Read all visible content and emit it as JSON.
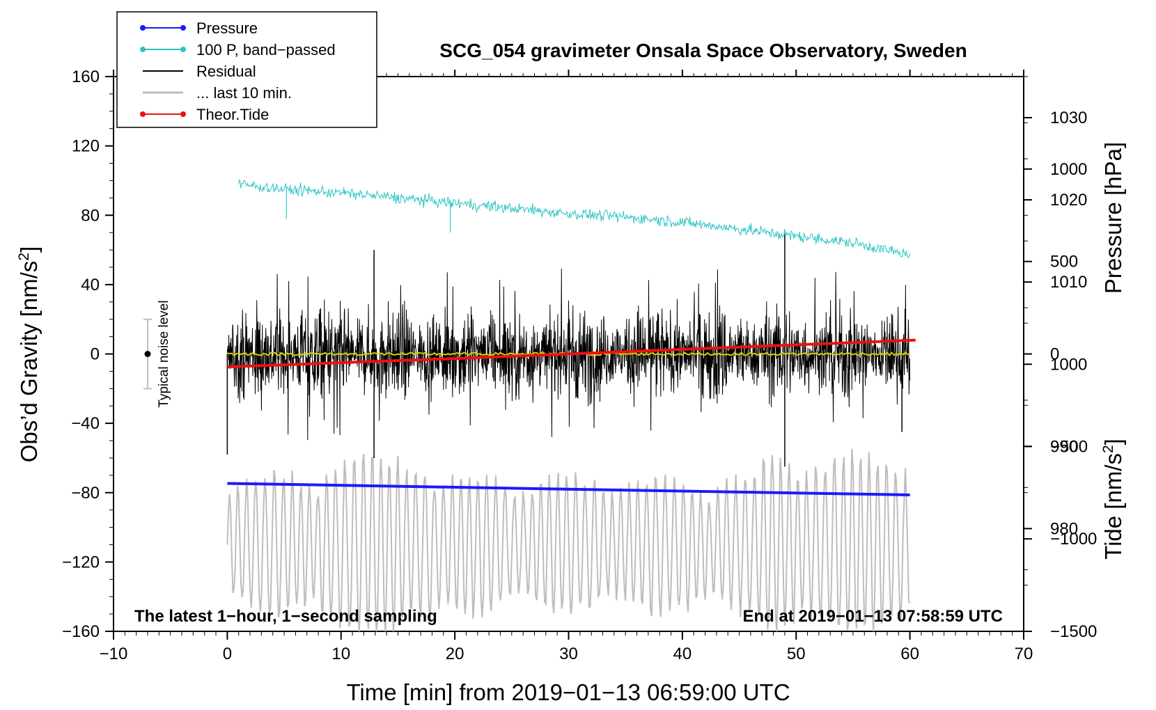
{
  "chart_data": {
    "type": "line",
    "title": "SCG_054 gravimeter Onsala Space Observatory, Sweden",
    "xlabel": "Time [min] from 2019−01−13 06:59:00 UTC",
    "ylabel": "Obs’d Gravity [nm/s²]",
    "ylabel_main": "Obs’d Gravity [nm/s",
    "ylabel_sup": "2",
    "ylabel_end": "]",
    "y2label": "Pressure [hPa]",
    "y3label": "Tide [nm/s²]",
    "y3label_main": "Tide [nm/s",
    "y3label_sup": "2",
    "y3label_end": "]",
    "xlim": [
      -10,
      70
    ],
    "ylim": [
      -160,
      160
    ],
    "y2lim": [
      967.5,
      1035
    ],
    "y3lim": [
      -1500,
      1500
    ],
    "xticks": [
      -10,
      0,
      10,
      20,
      30,
      40,
      50,
      60,
      70
    ],
    "xtick_labels": [
      "−10",
      "0",
      "10",
      "20",
      "30",
      "40",
      "50",
      "60",
      "70"
    ],
    "yticks": [
      -160,
      -120,
      -80,
      -40,
      0,
      40,
      80,
      120,
      160
    ],
    "ytick_labels": [
      "−160",
      "−120",
      "−80",
      "−40",
      "0",
      "40",
      "80",
      "120",
      "160"
    ],
    "y2ticks": [
      980,
      990,
      1000,
      1010,
      1020,
      1030
    ],
    "y2tick_labels": [
      "980",
      "990",
      "1000",
      "1010",
      "1020",
      "1030"
    ],
    "y3ticks": [
      -1500,
      -1000,
      -500,
      0,
      500,
      1000
    ],
    "y3tick_labels": [
      "−1500",
      "−1000",
      "−500",
      "0",
      "500",
      "1000"
    ],
    "annotations": {
      "bottom_left": "The latest 1−hour, 1−second sampling",
      "bottom_right": "End at 2019−01−13 07:58:59 UTC",
      "noise_label": "Typical noise level"
    },
    "noise_bar": {
      "x": -7,
      "center": 0,
      "half_width": 20
    },
    "legend": {
      "placement": "top-left",
      "entries": [
        {
          "label": "Pressure",
          "color": "#1a1aff",
          "marker": "dot"
        },
        {
          "label": "100 P, band−passed",
          "color": "#2ec4c4",
          "marker": "dot"
        },
        {
          "label": "Residual",
          "color": "#000000",
          "marker": "none"
        },
        {
          "label": "... last 10 min.",
          "color": "#bdbdbd",
          "marker": "none"
        },
        {
          "label": "Theor.Tide",
          "color": "#ee1111",
          "marker": "dot"
        }
      ]
    },
    "series": [
      {
        "name": "Pressure",
        "color": "#1a1aff",
        "axis": "pressure",
        "x": [
          0,
          60
        ],
        "y": [
          985.5,
          984.1
        ]
      },
      {
        "name": "100 P, band−passed",
        "color": "#2ec4c4",
        "axis": "gravity",
        "x": [
          1,
          5,
          10,
          15,
          20,
          25,
          30,
          35,
          40,
          45,
          50,
          55,
          60
        ],
        "y": [
          98,
          95,
          93,
          90,
          87,
          84,
          81,
          79,
          76,
          72,
          68,
          64,
          57
        ],
        "spikes": [
          [
            5.2,
            78
          ],
          [
            19.6,
            70
          ],
          [
            45.5,
            71
          ],
          [
            49,
            72
          ]
        ]
      },
      {
        "name": "Residual",
        "color": "#000000",
        "axis": "gravity",
        "x": [
          0,
          10,
          20,
          30,
          40,
          50,
          60
        ],
        "y": [
          0,
          0,
          0,
          0,
          0,
          0,
          0
        ],
        "envelope": {
          "typical": 30,
          "extremes": [
            [
              0,
              -58
            ],
            [
              12.9,
              60
            ],
            [
              12.9,
              -60
            ],
            [
              49,
              70
            ],
            [
              49,
              -65
            ],
            [
              59.3,
              -45
            ]
          ]
        }
      },
      {
        "name": "Residual smoothed",
        "color": "#d4d400",
        "axis": "gravity",
        "x": [
          0,
          60
        ],
        "y": [
          0,
          0
        ]
      },
      {
        "name": "... last 10 min.",
        "color": "#bdbdbd",
        "axis": "gravity",
        "x": [
          0,
          10,
          20,
          30,
          40,
          50,
          60
        ],
        "y": [
          -110,
          -110,
          -110,
          -110,
          -110,
          -110,
          -110
        ],
        "range": [
          -160,
          -52
        ]
      },
      {
        "name": "Theor.Tide",
        "color": "#ee1111",
        "axis": "tide",
        "x": [
          0,
          20,
          40,
          60.5
        ],
        "y": [
          -70,
          -25,
          25,
          75
        ]
      }
    ]
  }
}
